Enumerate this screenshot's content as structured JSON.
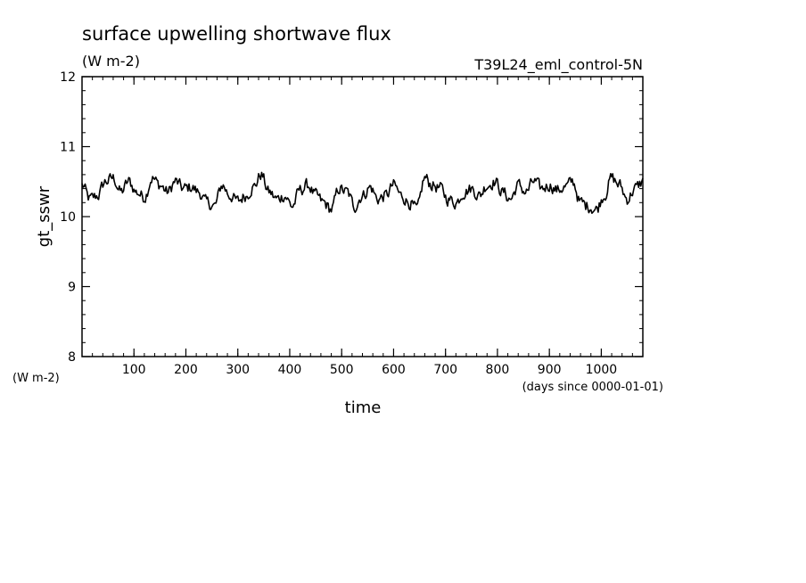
{
  "chart_data": {
    "type": "line",
    "title": "surface upwelling shortwave flux",
    "title_units": "(W m-2)",
    "experiment": "T39L24_eml_control-5N",
    "xlabel": "time",
    "x_units": "(days since 0000-01-01)",
    "ylabel": "gt_sswr",
    "y_units": "(W m-2)",
    "xlim": [
      0,
      1080
    ],
    "ylim": [
      8,
      12
    ],
    "x_ticks": [
      100,
      200,
      300,
      400,
      500,
      600,
      700,
      800,
      900,
      1000
    ],
    "x_tick_labels": [
      "100",
      "200",
      "300",
      "400",
      "500",
      "600",
      "700",
      "800",
      "900",
      "1000"
    ],
    "y_ticks": [
      8,
      9,
      10,
      11,
      12
    ],
    "y_tick_labels": [
      "8",
      "9",
      "10",
      "11",
      "12"
    ],
    "grid": false,
    "series": [
      {
        "name": "",
        "color": "#000000",
        "x": [
          0,
          15,
          30,
          45,
          60,
          75,
          90,
          105,
          120,
          135,
          150,
          165,
          180,
          195,
          210,
          225,
          240,
          255,
          270,
          285,
          300,
          315,
          330,
          345,
          360,
          375,
          390,
          405,
          420,
          435,
          450,
          465,
          480,
          495,
          510,
          525,
          540,
          555,
          570,
          585,
          600,
          615,
          630,
          645,
          660,
          675,
          690,
          705,
          720,
          735,
          750,
          765,
          780,
          795,
          810,
          825,
          840,
          855,
          870,
          885,
          900,
          915,
          930,
          945,
          960,
          975,
          990,
          1005,
          1020,
          1035,
          1050,
          1065,
          1080
        ],
        "values": [
          10.45,
          10.25,
          10.3,
          10.5,
          10.55,
          10.35,
          10.5,
          10.35,
          10.28,
          10.55,
          10.45,
          10.35,
          10.5,
          10.4,
          10.42,
          10.35,
          10.2,
          10.15,
          10.45,
          10.3,
          10.22,
          10.3,
          10.42,
          10.6,
          10.35,
          10.25,
          10.3,
          10.15,
          10.38,
          10.45,
          10.3,
          10.2,
          10.1,
          10.4,
          10.35,
          10.15,
          10.3,
          10.42,
          10.25,
          10.3,
          10.45,
          10.3,
          10.2,
          10.1,
          10.55,
          10.45,
          10.4,
          10.25,
          10.2,
          10.35,
          10.4,
          10.3,
          10.45,
          10.5,
          10.35,
          10.25,
          10.45,
          10.35,
          10.5,
          10.4,
          10.45,
          10.38,
          10.42,
          10.5,
          10.2,
          10.15,
          10.1,
          10.3,
          10.55,
          10.45,
          10.25,
          10.4,
          10.5
        ]
      }
    ]
  }
}
